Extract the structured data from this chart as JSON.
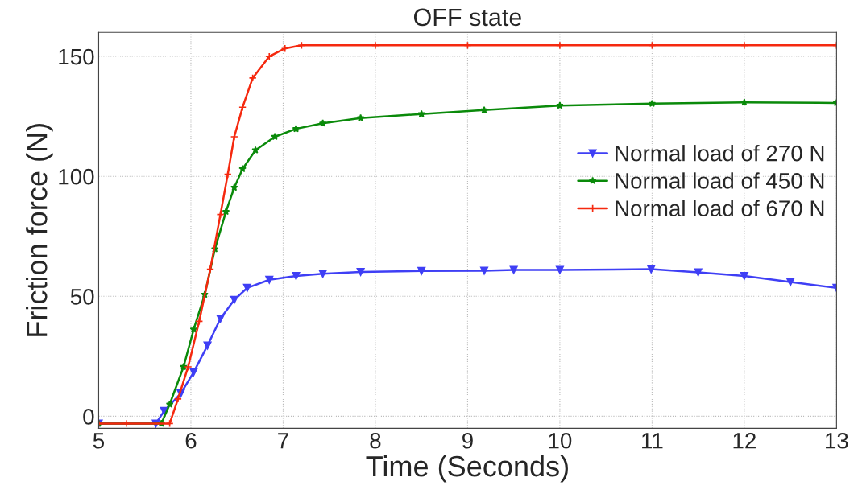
{
  "chart_data": {
    "type": "line",
    "title": "OFF state",
    "xlabel": "Time (Seconds)",
    "ylabel": "Friction force (N)",
    "xlim": [
      5,
      13
    ],
    "xticks": [
      5,
      6,
      7,
      8,
      9,
      10,
      11,
      12,
      13
    ],
    "ylim": [
      -5,
      160
    ],
    "yticks": [
      0,
      50,
      100,
      150
    ],
    "grid": true,
    "legend": "right",
    "line_style": "solid",
    "series": [
      {
        "name": "Normal load of 270 N",
        "color": "#3f3ff5",
        "marker": "triangle",
        "x": [
          5,
          5.62,
          5.71,
          5.89,
          6.03,
          6.18,
          6.32,
          6.47,
          6.61,
          6.85,
          7.14,
          7.43,
          7.84,
          8.5,
          9.18,
          9.5,
          10,
          10.99,
          11.5,
          12,
          12.5,
          13
        ],
        "values": [
          -3,
          -3,
          2.2,
          9.5,
          18.4,
          29.5,
          40.7,
          48.5,
          53.5,
          56.9,
          58.5,
          59.4,
          60.2,
          60.6,
          60.7,
          61,
          61,
          61.3,
          60,
          58.5,
          56,
          53.5
        ]
      },
      {
        "name": "Normal load of 450 N",
        "color": "#0a8a0a",
        "marker": "star",
        "x": [
          5,
          5.68,
          5.77,
          5.92,
          6.03,
          6.15,
          6.26,
          6.38,
          6.47,
          6.56,
          6.7,
          6.91,
          7.14,
          7.43,
          7.84,
          8.5,
          9.18,
          10,
          11,
          12,
          13
        ],
        "values": [
          -3,
          -3,
          5,
          20.6,
          36.2,
          50.7,
          69.7,
          85.3,
          95.3,
          103.1,
          110.9,
          116.5,
          119.8,
          122.1,
          124.3,
          126,
          127.6,
          129.5,
          130.3,
          130.8,
          130.6
        ]
      },
      {
        "name": "Normal load of 670 N",
        "color": "#f5290f",
        "marker": "cross",
        "x": [
          5,
          5.3,
          5.77,
          5.86,
          5.97,
          6.09,
          6.21,
          6.32,
          6.4,
          6.47,
          6.56,
          6.67,
          6.85,
          7.02,
          7.2,
          8,
          9,
          10,
          11,
          12,
          13
        ],
        "values": [
          -3,
          -3,
          -3,
          7.2,
          20.6,
          39.6,
          61.3,
          84.1,
          100.9,
          116.5,
          128.8,
          141,
          150,
          153.3,
          154.6,
          154.6,
          154.6,
          154.6,
          154.6,
          154.6,
          154.6
        ]
      }
    ]
  }
}
